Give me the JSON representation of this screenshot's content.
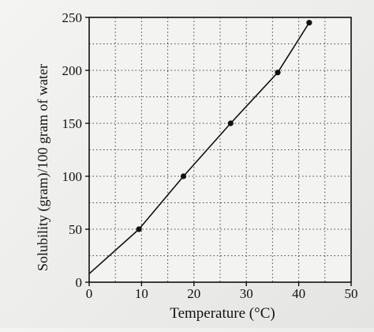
{
  "chart_data": {
    "type": "line",
    "title": "",
    "xlabel": "Temperature (°C)",
    "ylabel": "Solubility (gram)/100 gram of water",
    "xlim": [
      0,
      50
    ],
    "ylim": [
      0,
      250
    ],
    "x_ticks": [
      0,
      10,
      20,
      30,
      40,
      50
    ],
    "y_ticks": [
      0,
      50,
      100,
      150,
      200,
      250
    ],
    "x_tick_labels": [
      "0",
      "10",
      "20",
      "30",
      "40",
      "50"
    ],
    "y_tick_labels": [
      "0",
      "50",
      "100",
      "150",
      "200",
      "250"
    ],
    "grid": true,
    "grid_style": "dotted",
    "line_points": {
      "x": [
        0,
        9.5,
        18,
        27,
        36,
        42
      ],
      "y": [
        8,
        50,
        100,
        150,
        198,
        245
      ]
    },
    "markers": {
      "x": [
        9.5,
        18,
        27,
        36,
        42
      ],
      "y": [
        50,
        100,
        150,
        198,
        245
      ]
    },
    "colors": {
      "line": "#111111",
      "grid": "#444444",
      "background": "#f0f0ee"
    }
  }
}
